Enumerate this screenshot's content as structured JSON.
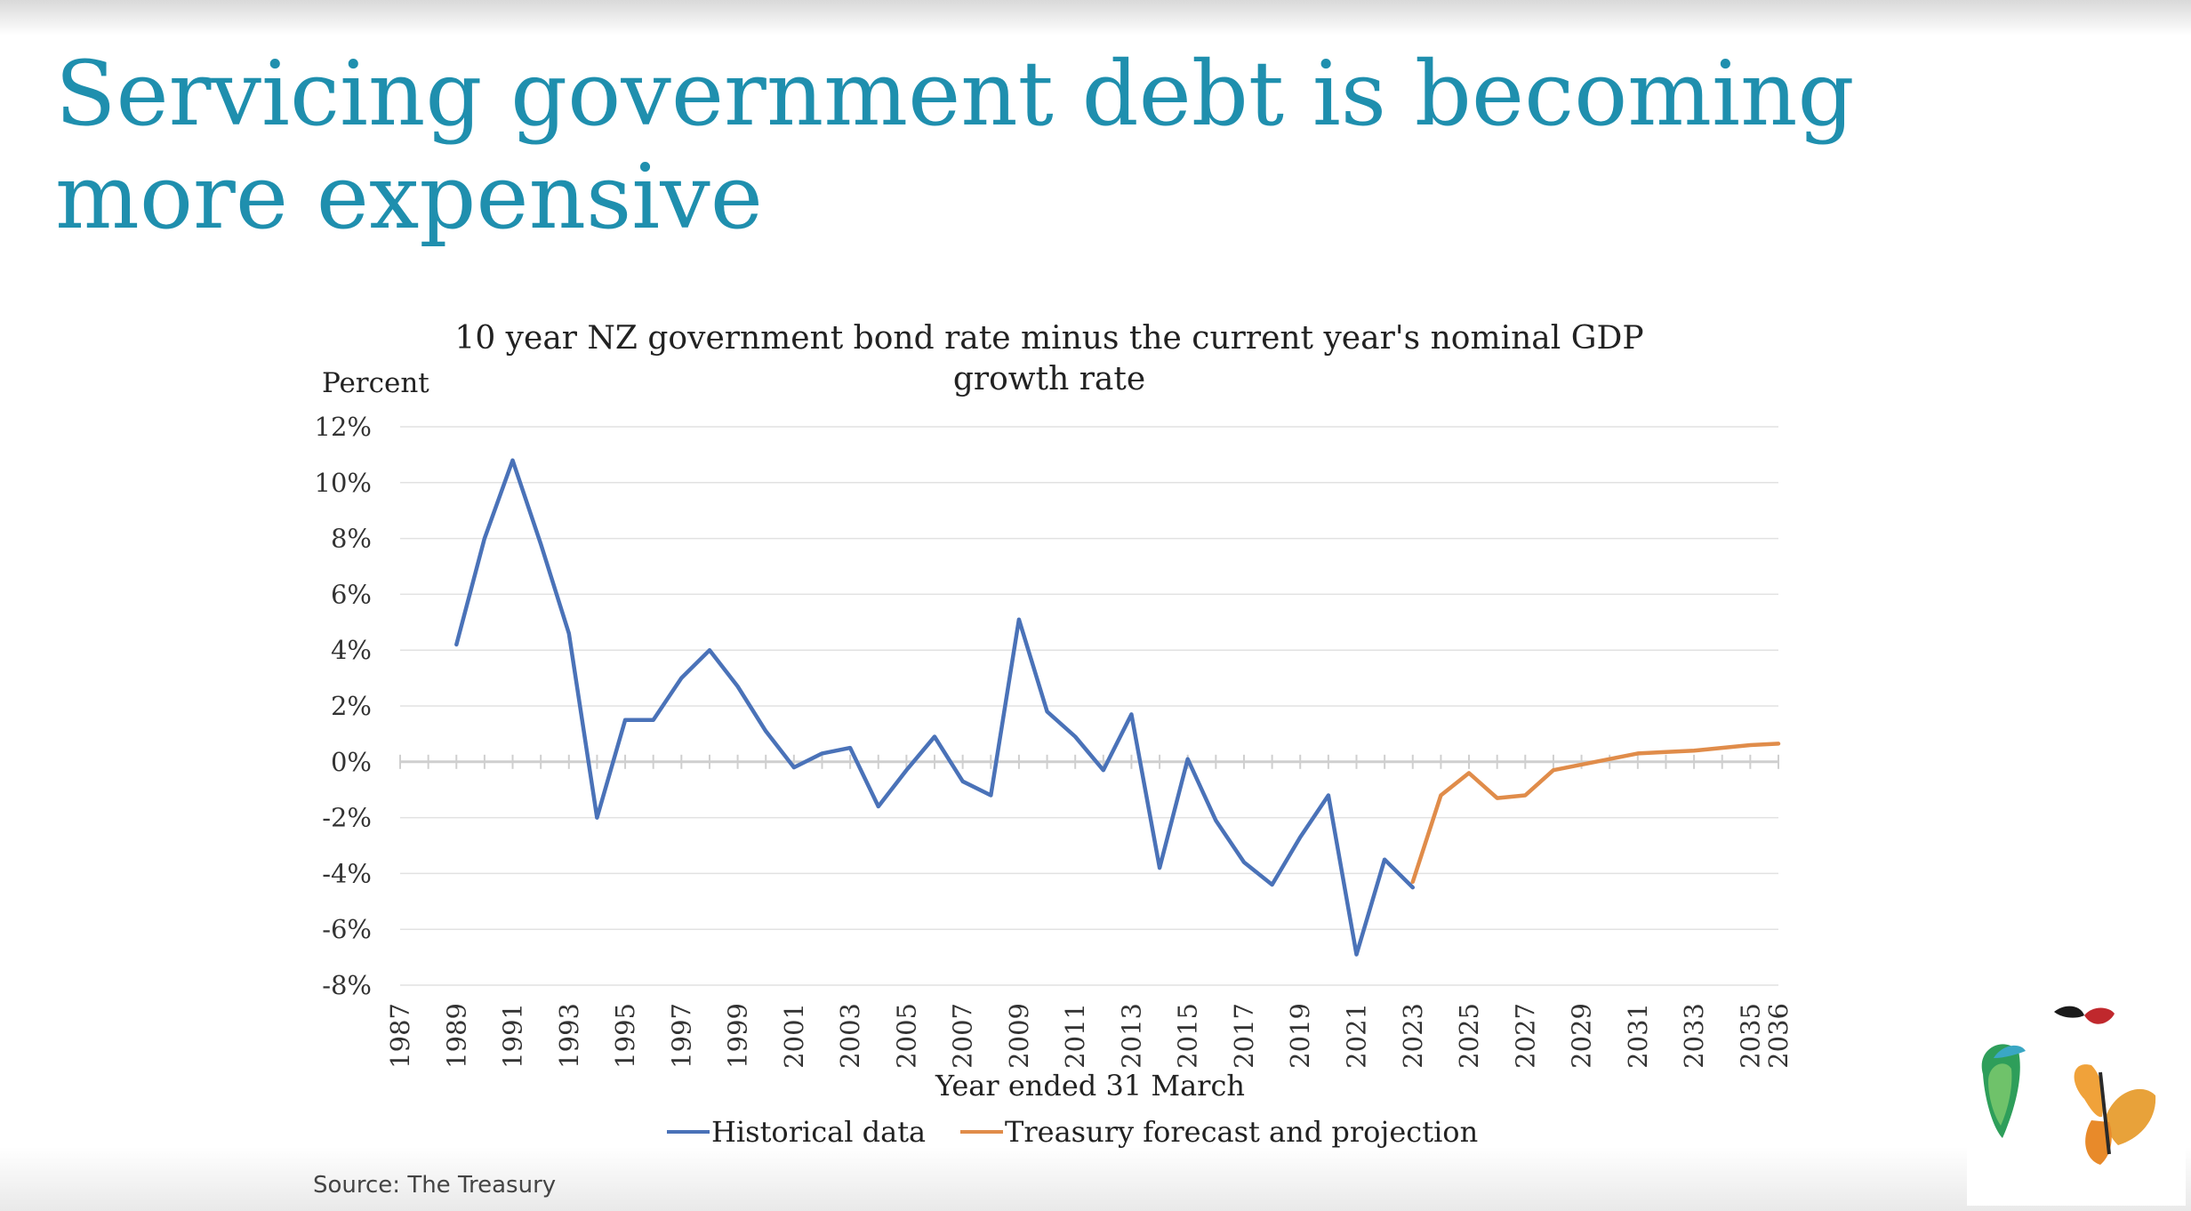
{
  "slide": {
    "title": "Servicing government debt is becoming more expensive",
    "source": "Source: The Treasury"
  },
  "logo": {
    "icon": "butterflies-logo-icon",
    "colors": [
      "#e8a23a",
      "#2e9e5a",
      "#c0282d",
      "#1a1a1a"
    ]
  },
  "chart_data": {
    "type": "line",
    "title_lines": [
      "10 year NZ government bond rate minus the current year's nominal GDP",
      "growth rate"
    ],
    "ylabel": "Percent",
    "xlabel": "Year ended 31 March",
    "ylim": [
      -8,
      12
    ],
    "xlim": [
      1987,
      2036
    ],
    "y_ticks": [
      12,
      10,
      8,
      6,
      4,
      2,
      0,
      -2,
      -4,
      -6,
      -8
    ],
    "y_tick_labels": [
      "12%",
      "10%",
      "8%",
      "6%",
      "4%",
      "2%",
      "0%",
      "-2%",
      "-4%",
      "-6%",
      "-8%"
    ],
    "x_tick_labels": [
      "1987",
      "1989",
      "1991",
      "1993",
      "1995",
      "1997",
      "1999",
      "2001",
      "2003",
      "2005",
      "2007",
      "2009",
      "2011",
      "2013",
      "2015",
      "2017",
      "2019",
      "2021",
      "2023",
      "2025",
      "2027",
      "2029",
      "2031",
      "2033",
      "2035",
      "2036"
    ],
    "grid": true,
    "legend_position": "bottom",
    "colors": {
      "historical": "#4a72b8",
      "forecast": "#e08c4a",
      "grid": "#e2e2e2",
      "zero_axis": "#cfcfcf"
    },
    "series": [
      {
        "name": "Historical data",
        "color": "#4a72b8",
        "x": [
          1989,
          1990,
          1991,
          1992,
          1993,
          1994,
          1995,
          1996,
          1997,
          1998,
          1999,
          2000,
          2001,
          2002,
          2003,
          2004,
          2005,
          2006,
          2007,
          2008,
          2009,
          2010,
          2011,
          2012,
          2013,
          2014,
          2015,
          2016,
          2017,
          2018,
          2019,
          2020,
          2021,
          2022,
          2023
        ],
        "values": [
          4.2,
          8.0,
          10.8,
          7.8,
          4.6,
          -2.0,
          1.5,
          1.5,
          3.0,
          4.0,
          2.7,
          1.1,
          -0.2,
          0.3,
          0.5,
          -1.6,
          -0.3,
          0.9,
          -0.7,
          -1.2,
          5.1,
          1.8,
          0.9,
          -0.3,
          1.7,
          -3.8,
          0.1,
          -2.1,
          -3.6,
          -4.4,
          -2.7,
          -1.2,
          -6.9,
          -3.5,
          -4.5
        ]
      },
      {
        "name": "Treasury forecast and projection",
        "color": "#e08c4a",
        "x": [
          2023,
          2024,
          2025,
          2026,
          2027,
          2028,
          2029,
          2030,
          2031,
          2032,
          2033,
          2034,
          2035,
          2036
        ],
        "values": [
          -4.3,
          -1.2,
          -0.4,
          -1.3,
          -1.2,
          -0.3,
          -0.1,
          0.1,
          0.3,
          0.35,
          0.4,
          0.5,
          0.6,
          0.65
        ]
      }
    ]
  }
}
